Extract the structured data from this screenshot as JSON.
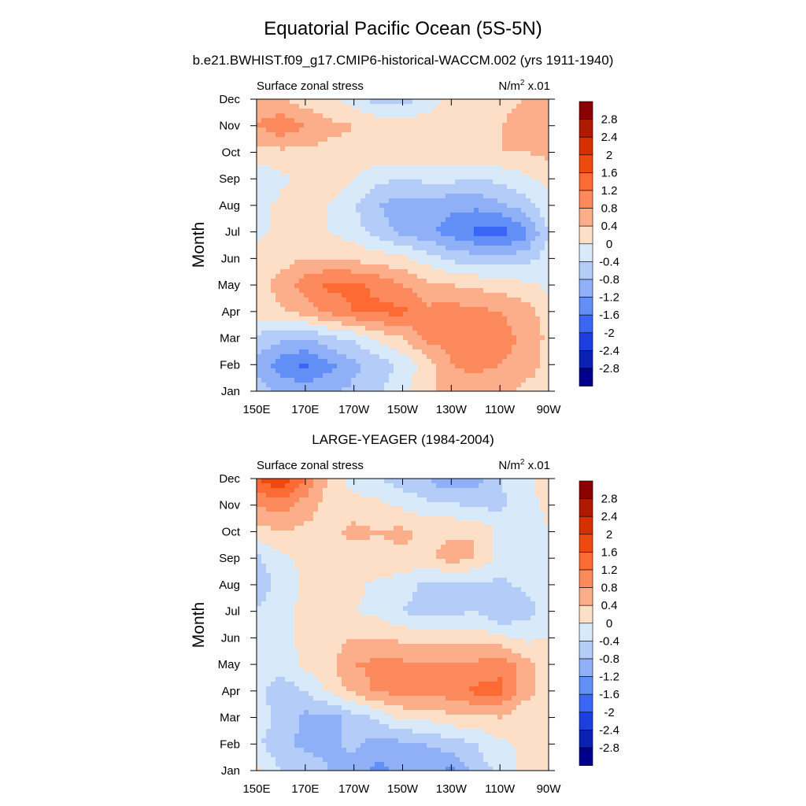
{
  "figure": {
    "title": "Equatorial Pacific Ocean (5S-5N)",
    "x_tick_labels": [
      "150E",
      "170E",
      "170W",
      "150W",
      "130W",
      "110W",
      "90W"
    ],
    "y_tick_labels": [
      "Jan",
      "Feb",
      "Mar",
      "Apr",
      "May",
      "Jun",
      "Jul",
      "Aug",
      "Sep",
      "Oct",
      "Nov",
      "Dec"
    ],
    "ylabel": "Month",
    "panel_left_label": "Surface zonal stress",
    "panel_unit_text": "N/m",
    "panel_unit_sup": "2",
    "panel_unit_scale": " x.01"
  },
  "colorbar": {
    "labels": [
      "2.8",
      "2.4",
      "2",
      "1.6",
      "1.2",
      "0.8",
      "0.4",
      "0",
      "-0.4",
      "-0.8",
      "-1.2",
      "-1.6",
      "-2",
      "-2.4",
      "-2.8"
    ],
    "colors": [
      "#8b0000",
      "#b01a00",
      "#d62f00",
      "#ee4a10",
      "#fe6a34",
      "#fd8a5c",
      "#fcae8a",
      "#fddfc7",
      "#d8e9f9",
      "#b4cdf8",
      "#8fb0f6",
      "#628ff5",
      "#3a66f5",
      "#1b3fe0",
      "#0a21b6",
      "#00008c"
    ]
  },
  "chart_data": [
    {
      "type": "heatmap",
      "subtitle": "b.e21.BWHIST.f09_g17.CMIP6-historical-WACCM.002 (yrs 1911-1940)",
      "variable": "Surface zonal stress",
      "units": "N/m2 x.01",
      "xlabel": "",
      "ylabel": "Month",
      "x": [
        "150E",
        "160E",
        "170E",
        "180",
        "170W",
        "160W",
        "150W",
        "140W",
        "130W",
        "120W",
        "110W",
        "100W",
        "90W"
      ],
      "y": [
        "Jan",
        "Feb",
        "Mar",
        "Apr",
        "May",
        "Jun",
        "Jul",
        "Aug",
        "Sep",
        "Oct",
        "Nov",
        "Dec"
      ],
      "levels": [
        -2.8,
        -2.4,
        -2.0,
        -1.6,
        -1.2,
        -0.8,
        -0.4,
        0,
        0.4,
        0.8,
        1.2,
        1.6,
        2.0,
        2.4,
        2.8
      ],
      "z": [
        [
          -0.6,
          -0.9,
          -1.0,
          -0.9,
          -0.7,
          -0.5,
          -0.1,
          0.3,
          0.6,
          0.6,
          0.5,
          0.3,
          0.2
        ],
        [
          -1.0,
          -1.4,
          -1.7,
          -1.3,
          -0.9,
          -0.6,
          -0.3,
          0.2,
          0.8,
          0.9,
          0.8,
          0.6,
          0.3
        ],
        [
          -0.5,
          -0.7,
          -0.8,
          -0.5,
          -0.3,
          0.1,
          0.4,
          0.9,
          1.0,
          1.1,
          1.0,
          0.7,
          0.3
        ],
        [
          0.2,
          0.3,
          0.6,
          0.9,
          1.2,
          1.3,
          1.3,
          0.9,
          1.0,
          0.9,
          0.8,
          0.6,
          0.2
        ],
        [
          0.2,
          0.6,
          1.0,
          1.3,
          1.3,
          1.1,
          0.8,
          0.5,
          0.4,
          0.3,
          0.2,
          0.1,
          -0.1
        ],
        [
          0.1,
          0.2,
          0.4,
          0.4,
          0.3,
          0.2,
          0.1,
          -0.2,
          -0.5,
          -0.6,
          -0.6,
          -0.6,
          -0.2
        ],
        [
          -0.1,
          0.1,
          0.1,
          0.0,
          -0.2,
          -0.6,
          -0.9,
          -1.1,
          -1.4,
          -1.7,
          -1.8,
          -1.4,
          -0.4
        ],
        [
          -0.2,
          0.1,
          0.2,
          0.0,
          -0.4,
          -0.8,
          -1.0,
          -1.0,
          -1.1,
          -1.1,
          -0.9,
          -0.6,
          -0.1
        ],
        [
          -0.3,
          -0.1,
          0.2,
          0.3,
          0.0,
          -0.3,
          -0.4,
          -0.3,
          -0.3,
          -0.4,
          -0.3,
          -0.1,
          0.1
        ],
        [
          0.2,
          0.3,
          0.3,
          0.3,
          0.3,
          0.3,
          0.3,
          0.2,
          0.3,
          0.4,
          0.4,
          0.4,
          0.5
        ],
        [
          0.8,
          1.1,
          0.8,
          0.5,
          0.4,
          0.3,
          0.2,
          0.2,
          0.3,
          0.3,
          0.4,
          0.5,
          0.4
        ],
        [
          0.5,
          0.4,
          0.2,
          0.1,
          -0.2,
          -0.6,
          -0.6,
          -0.2,
          0.1,
          0.2,
          0.3,
          0.4,
          0.4
        ]
      ]
    },
    {
      "type": "heatmap",
      "subtitle": "LARGE-YEAGER (1984-2004)",
      "variable": "Surface zonal stress",
      "units": "N/m2 x.01",
      "xlabel": "",
      "ylabel": "Month",
      "x": [
        "150E",
        "160E",
        "170E",
        "180",
        "170W",
        "160W",
        "150W",
        "140W",
        "130W",
        "120W",
        "110W",
        "100W",
        "90W"
      ],
      "y": [
        "Jan",
        "Feb",
        "Mar",
        "Apr",
        "May",
        "Jun",
        "Jul",
        "Aug",
        "Sep",
        "Oct",
        "Nov",
        "Dec"
      ],
      "levels": [
        -2.8,
        -2.4,
        -2.0,
        -1.6,
        -1.2,
        -0.8,
        -0.4,
        0,
        0.4,
        0.8,
        1.2,
        1.6,
        2.0,
        2.4,
        2.8
      ],
      "z": [
        [
          0.1,
          -0.4,
          -0.6,
          -0.8,
          -1.0,
          -1.3,
          -1.1,
          -1.0,
          -1.3,
          -0.6,
          -0.3,
          0.1,
          0.2
        ],
        [
          -0.3,
          -0.7,
          -0.9,
          -0.9,
          -0.7,
          -1.0,
          -0.9,
          -0.8,
          -0.6,
          -0.4,
          -0.1,
          0.1,
          0.2
        ],
        [
          -0.2,
          -0.5,
          -0.9,
          -1.0,
          -0.6,
          -0.3,
          0.1,
          0.1,
          0.3,
          0.3,
          0.4,
          0.1,
          0.1
        ],
        [
          -0.3,
          -0.6,
          -0.4,
          0.1,
          0.5,
          0.9,
          0.9,
          1.0,
          1.0,
          1.3,
          1.3,
          0.6,
          0.2
        ],
        [
          -0.1,
          -0.3,
          0.1,
          0.3,
          0.8,
          0.9,
          0.9,
          0.8,
          0.8,
          0.9,
          1.1,
          0.6,
          0.1
        ],
        [
          -0.2,
          -0.1,
          0.1,
          0.2,
          0.4,
          0.4,
          0.3,
          0.3,
          0.3,
          0.2,
          0.1,
          -0.1,
          0.0
        ],
        [
          -0.4,
          -0.1,
          0.1,
          0.1,
          0.0,
          -0.1,
          -0.4,
          -0.6,
          -0.5,
          -0.4,
          -0.8,
          -0.6,
          -0.2
        ],
        [
          -0.6,
          -0.3,
          0.1,
          0.2,
          0.1,
          -0.1,
          -0.2,
          -0.5,
          -0.5,
          -0.5,
          -0.5,
          -0.3,
          -0.2
        ],
        [
          -0.5,
          -0.1,
          0.1,
          0.3,
          0.2,
          0.3,
          0.3,
          0.3,
          0.6,
          0.4,
          -0.1,
          -0.3,
          -0.1
        ],
        [
          0.2,
          0.4,
          0.3,
          0.3,
          0.5,
          0.4,
          0.5,
          0.3,
          0.3,
          0.4,
          -0.1,
          -0.2,
          0.0
        ],
        [
          0.8,
          1.0,
          0.6,
          0.2,
          0.2,
          0.1,
          -0.1,
          -0.3,
          -0.3,
          -0.5,
          -0.5,
          -0.2,
          0.1
        ],
        [
          1.6,
          2.0,
          1.2,
          0.3,
          -0.2,
          -0.4,
          -0.6,
          -0.8,
          -1.2,
          -1.0,
          -0.4,
          -0.1,
          0.2
        ]
      ]
    }
  ]
}
